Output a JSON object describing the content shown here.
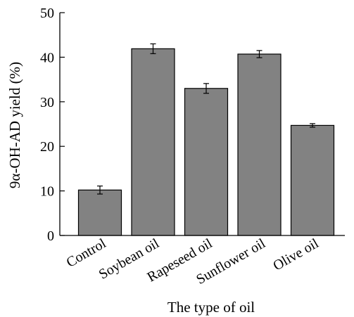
{
  "chart_data": {
    "type": "bar",
    "categories": [
      "Control",
      "Soybean oil",
      "Rapeseed oil",
      "Sunflower oil",
      "Olive oil"
    ],
    "values": [
      10.2,
      41.9,
      33.0,
      40.7,
      24.7
    ],
    "errors": [
      0.9,
      1.1,
      1.1,
      0.8,
      0.4
    ],
    "xlabel": "The type of oil",
    "ylabel": "9α-OH-AD yield (%)",
    "ylim": [
      0,
      50
    ],
    "yticks": [
      0,
      10,
      20,
      30,
      40,
      50
    ],
    "grid": false,
    "bar_color": "#828282"
  }
}
